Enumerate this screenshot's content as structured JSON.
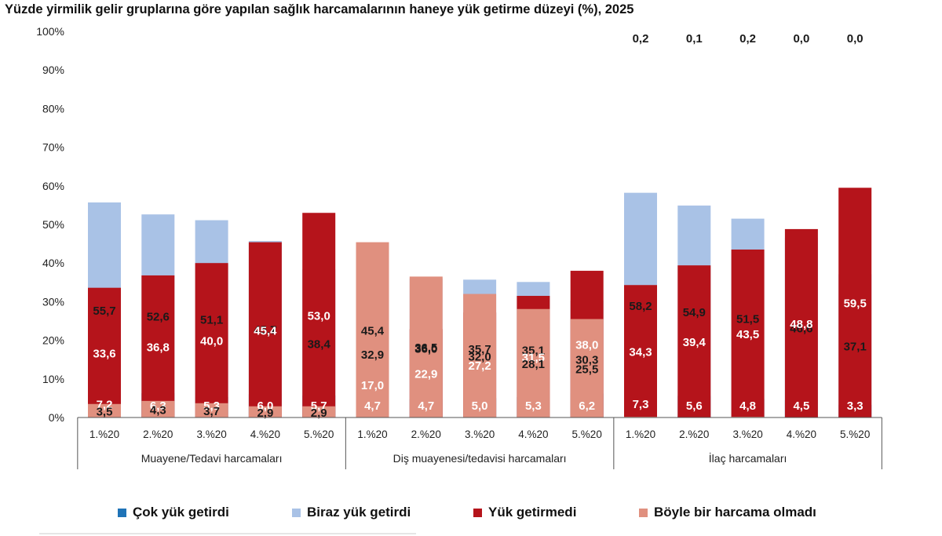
{
  "chart_data": {
    "type": "bar",
    "stacked": true,
    "title": "Yüzde yirmilik gelir gruplarına göre yapılan sağlık harcamalarının haneye yük getirme düzeyi (%), 2025",
    "y_tick_labels": [
      "0%",
      "10%",
      "20%",
      "30%",
      "40%",
      "50%",
      "60%",
      "70%",
      "80%",
      "90%",
      "100%"
    ],
    "ylim": [
      0,
      100
    ],
    "grid": false,
    "legend_position": "bottom",
    "groups": [
      {
        "label": "Muayene/Tedavi harcamaları",
        "categories": [
          "1.%20",
          "2.%20",
          "3.%20",
          "4.%20",
          "5.%20"
        ]
      },
      {
        "label": "Diş muayenesi/tedavisi harcamaları",
        "categories": [
          "1.%20",
          "2.%20",
          "3.%20",
          "4.%20",
          "5.%20"
        ]
      },
      {
        "label": "İlaç harcamaları",
        "categories": [
          "1.%20",
          "2.%20",
          "3.%20",
          "4.%20",
          "5.%20"
        ]
      }
    ],
    "series": [
      {
        "name": "Çok yük getirdi",
        "color": "#1f73b7",
        "label_color": "#ffffff",
        "values": [
          7.2,
          6.3,
          5.3,
          6.0,
          5.7,
          4.7,
          4.7,
          5.0,
          5.3,
          6.2,
          7.3,
          5.6,
          4.8,
          4.5,
          3.3
        ],
        "labels": [
          "7,2",
          "6,3",
          "5,3",
          "6,0",
          "5,7",
          "4,7",
          "4,7",
          "5,0",
          "5,3",
          "6,2",
          "7,3",
          "5,6",
          "4,8",
          "4,5",
          "3,3"
        ]
      },
      {
        "name": "Biraz yük getirdi",
        "color": "#a9c2e6",
        "label_color": "#1a1a1a",
        "values": [
          55.7,
          52.6,
          51.1,
          45.7,
          38.4,
          32.9,
          36.0,
          35.7,
          35.1,
          30.3,
          58.2,
          54.9,
          51.5,
          46.6,
          37.1
        ],
        "labels": [
          "55,7",
          "52,6",
          "51,1",
          "45,7",
          "38,4",
          "32,9",
          "36,0",
          "35,7",
          "35,1",
          "30,3",
          "58,2",
          "54,9",
          "51,5",
          "46,6",
          "37,1"
        ]
      },
      {
        "name": "Yük getirmedi",
        "color": "#b5141b",
        "label_color": "#ffffff",
        "values": [
          33.6,
          36.8,
          40.0,
          45.4,
          53.0,
          17.0,
          22.9,
          27.2,
          31.5,
          38.0,
          34.3,
          39.4,
          43.5,
          48.8,
          59.5
        ],
        "labels": [
          "33,6",
          "36,8",
          "40,0",
          "45,4",
          "53,0",
          "17,0",
          "22,9",
          "27,2",
          "31,5",
          "38,0",
          "34,3",
          "39,4",
          "43,5",
          "48,8",
          "59,5"
        ]
      },
      {
        "name": "Böyle bir harcama olmadı",
        "color": "#e0907f",
        "label_color": "#1a1a1a",
        "values": [
          3.5,
          4.3,
          3.7,
          2.9,
          2.9,
          45.4,
          36.5,
          32.0,
          28.1,
          25.5,
          0.2,
          0.1,
          0.2,
          0.0,
          0.0
        ],
        "labels": [
          "3,5",
          "4,3",
          "3,7",
          "2,9",
          "2,9",
          "45,4",
          "36,5",
          "32,0",
          "28,1",
          "25,5",
          "0,2",
          "0,1",
          "0,2",
          "0,0",
          "0,0"
        ]
      }
    ]
  }
}
